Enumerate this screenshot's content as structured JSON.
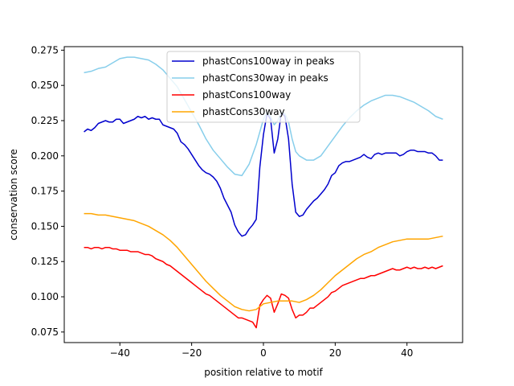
{
  "chart_data": {
    "type": "line",
    "title": "",
    "xlabel": "position relative to motif",
    "ylabel": "conservation score",
    "xlim": [
      -55.5,
      55.5
    ],
    "ylim": [
      0.0675,
      0.2775
    ],
    "xticks": [
      -40,
      -20,
      0,
      20,
      40
    ],
    "xtick_labels": [
      "−40",
      "−20",
      "0",
      "20",
      "40"
    ],
    "yticks": [
      0.075,
      0.1,
      0.125,
      0.15,
      0.175,
      0.2,
      0.225,
      0.25,
      0.275
    ],
    "ytick_labels": [
      "0.075",
      "0.100",
      "0.125",
      "0.150",
      "0.175",
      "0.200",
      "0.225",
      "0.250",
      "0.275"
    ],
    "grid": false,
    "legend_position": "top-center",
    "series": [
      {
        "name": "phastCons100way in peaks",
        "color": "#0000cd",
        "points": [
          [
            -50,
            0.217
          ],
          [
            -49,
            0.219
          ],
          [
            -48,
            0.218
          ],
          [
            -47,
            0.22
          ],
          [
            -46,
            0.223
          ],
          [
            -45,
            0.224
          ],
          [
            -44,
            0.225
          ],
          [
            -43,
            0.224
          ],
          [
            -42,
            0.224
          ],
          [
            -41,
            0.226
          ],
          [
            -40,
            0.226
          ],
          [
            -39,
            0.223
          ],
          [
            -38,
            0.224
          ],
          [
            -37,
            0.225
          ],
          [
            -36,
            0.226
          ],
          [
            -35,
            0.228
          ],
          [
            -34,
            0.227
          ],
          [
            -33,
            0.228
          ],
          [
            -32,
            0.226
          ],
          [
            -31,
            0.227
          ],
          [
            -30,
            0.226
          ],
          [
            -29,
            0.226
          ],
          [
            -28,
            0.222
          ],
          [
            -27,
            0.221
          ],
          [
            -26,
            0.22
          ],
          [
            -25,
            0.219
          ],
          [
            -24,
            0.216
          ],
          [
            -23,
            0.21
          ],
          [
            -22,
            0.208
          ],
          [
            -21,
            0.205
          ],
          [
            -20,
            0.201
          ],
          [
            -19,
            0.197
          ],
          [
            -18,
            0.193
          ],
          [
            -17,
            0.19
          ],
          [
            -16,
            0.188
          ],
          [
            -15,
            0.187
          ],
          [
            -14,
            0.185
          ],
          [
            -13,
            0.182
          ],
          [
            -12,
            0.177
          ],
          [
            -11,
            0.17
          ],
          [
            -10,
            0.165
          ],
          [
            -9,
            0.16
          ],
          [
            -8,
            0.151
          ],
          [
            -7,
            0.146
          ],
          [
            -6,
            0.143
          ],
          [
            -5,
            0.144
          ],
          [
            -4,
            0.148
          ],
          [
            -3,
            0.151
          ],
          [
            -2,
            0.155
          ],
          [
            -1,
            0.192
          ],
          [
            0,
            0.215
          ],
          [
            1,
            0.23
          ],
          [
            2,
            0.226
          ],
          [
            3,
            0.202
          ],
          [
            4,
            0.212
          ],
          [
            5,
            0.231
          ],
          [
            6,
            0.228
          ],
          [
            7,
            0.212
          ],
          [
            8,
            0.18
          ],
          [
            9,
            0.16
          ],
          [
            10,
            0.157
          ],
          [
            11,
            0.158
          ],
          [
            12,
            0.162
          ],
          [
            13,
            0.165
          ],
          [
            14,
            0.168
          ],
          [
            15,
            0.17
          ],
          [
            16,
            0.173
          ],
          [
            17,
            0.176
          ],
          [
            18,
            0.18
          ],
          [
            19,
            0.186
          ],
          [
            20,
            0.188
          ],
          [
            21,
            0.193
          ],
          [
            22,
            0.195
          ],
          [
            23,
            0.196
          ],
          [
            24,
            0.196
          ],
          [
            25,
            0.197
          ],
          [
            26,
            0.198
          ],
          [
            27,
            0.199
          ],
          [
            28,
            0.201
          ],
          [
            29,
            0.199
          ],
          [
            30,
            0.198
          ],
          [
            31,
            0.201
          ],
          [
            32,
            0.202
          ],
          [
            33,
            0.201
          ],
          [
            34,
            0.202
          ],
          [
            35,
            0.202
          ],
          [
            36,
            0.202
          ],
          [
            37,
            0.202
          ],
          [
            38,
            0.2
          ],
          [
            39,
            0.201
          ],
          [
            40,
            0.203
          ],
          [
            41,
            0.204
          ],
          [
            42,
            0.204
          ],
          [
            43,
            0.203
          ],
          [
            44,
            0.203
          ],
          [
            45,
            0.203
          ],
          [
            46,
            0.202
          ],
          [
            47,
            0.202
          ],
          [
            48,
            0.2
          ],
          [
            49,
            0.197
          ],
          [
            50,
            0.197
          ]
        ]
      },
      {
        "name": "phastCons30way in peaks",
        "color": "#87ceeb",
        "points": [
          [
            -50,
            0.259
          ],
          [
            -48,
            0.26
          ],
          [
            -46,
            0.262
          ],
          [
            -44,
            0.263
          ],
          [
            -42,
            0.266
          ],
          [
            -40,
            0.269
          ],
          [
            -38,
            0.27
          ],
          [
            -36,
            0.27
          ],
          [
            -34,
            0.269
          ],
          [
            -32,
            0.268
          ],
          [
            -30,
            0.265
          ],
          [
            -28,
            0.261
          ],
          [
            -26,
            0.255
          ],
          [
            -24,
            0.249
          ],
          [
            -22,
            0.24
          ],
          [
            -20,
            0.231
          ],
          [
            -18,
            0.222
          ],
          [
            -16,
            0.212
          ],
          [
            -14,
            0.204
          ],
          [
            -12,
            0.198
          ],
          [
            -10,
            0.192
          ],
          [
            -8,
            0.187
          ],
          [
            -6,
            0.186
          ],
          [
            -4,
            0.194
          ],
          [
            -2,
            0.208
          ],
          [
            0,
            0.226
          ],
          [
            1,
            0.231
          ],
          [
            2,
            0.228
          ],
          [
            3,
            0.222
          ],
          [
            4,
            0.225
          ],
          [
            5,
            0.231
          ],
          [
            6,
            0.23
          ],
          [
            7,
            0.224
          ],
          [
            8,
            0.212
          ],
          [
            9,
            0.203
          ],
          [
            10,
            0.2
          ],
          [
            12,
            0.197
          ],
          [
            14,
            0.197
          ],
          [
            16,
            0.2
          ],
          [
            18,
            0.207
          ],
          [
            20,
            0.214
          ],
          [
            22,
            0.221
          ],
          [
            24,
            0.227
          ],
          [
            26,
            0.232
          ],
          [
            28,
            0.236
          ],
          [
            30,
            0.239
          ],
          [
            32,
            0.241
          ],
          [
            34,
            0.243
          ],
          [
            36,
            0.243
          ],
          [
            38,
            0.242
          ],
          [
            40,
            0.24
          ],
          [
            42,
            0.238
          ],
          [
            44,
            0.235
          ],
          [
            46,
            0.232
          ],
          [
            48,
            0.228
          ],
          [
            50,
            0.226
          ]
        ]
      },
      {
        "name": "phastCons100way",
        "color": "#ff0000",
        "points": [
          [
            -50,
            0.135
          ],
          [
            -49,
            0.135
          ],
          [
            -48,
            0.134
          ],
          [
            -47,
            0.135
          ],
          [
            -46,
            0.135
          ],
          [
            -45,
            0.134
          ],
          [
            -44,
            0.135
          ],
          [
            -43,
            0.135
          ],
          [
            -42,
            0.134
          ],
          [
            -41,
            0.134
          ],
          [
            -40,
            0.133
          ],
          [
            -39,
            0.133
          ],
          [
            -38,
            0.133
          ],
          [
            -37,
            0.132
          ],
          [
            -36,
            0.132
          ],
          [
            -35,
            0.132
          ],
          [
            -34,
            0.131
          ],
          [
            -33,
            0.13
          ],
          [
            -32,
            0.13
          ],
          [
            -31,
            0.129
          ],
          [
            -30,
            0.127
          ],
          [
            -29,
            0.126
          ],
          [
            -28,
            0.125
          ],
          [
            -27,
            0.123
          ],
          [
            -26,
            0.122
          ],
          [
            -25,
            0.12
          ],
          [
            -24,
            0.118
          ],
          [
            -23,
            0.116
          ],
          [
            -22,
            0.114
          ],
          [
            -21,
            0.112
          ],
          [
            -20,
            0.11
          ],
          [
            -19,
            0.108
          ],
          [
            -18,
            0.106
          ],
          [
            -17,
            0.104
          ],
          [
            -16,
            0.102
          ],
          [
            -15,
            0.101
          ],
          [
            -14,
            0.099
          ],
          [
            -13,
            0.097
          ],
          [
            -12,
            0.095
          ],
          [
            -11,
            0.093
          ],
          [
            -10,
            0.091
          ],
          [
            -9,
            0.089
          ],
          [
            -8,
            0.087
          ],
          [
            -7,
            0.085
          ],
          [
            -6,
            0.085
          ],
          [
            -5,
            0.084
          ],
          [
            -4,
            0.083
          ],
          [
            -3,
            0.082
          ],
          [
            -2,
            0.078
          ],
          [
            -1,
            0.094
          ],
          [
            0,
            0.098
          ],
          [
            1,
            0.101
          ],
          [
            2,
            0.099
          ],
          [
            3,
            0.089
          ],
          [
            4,
            0.095
          ],
          [
            5,
            0.102
          ],
          [
            6,
            0.101
          ],
          [
            7,
            0.099
          ],
          [
            8,
            0.091
          ],
          [
            9,
            0.085
          ],
          [
            10,
            0.087
          ],
          [
            11,
            0.087
          ],
          [
            12,
            0.089
          ],
          [
            13,
            0.092
          ],
          [
            14,
            0.092
          ],
          [
            15,
            0.094
          ],
          [
            16,
            0.096
          ],
          [
            17,
            0.098
          ],
          [
            18,
            0.1
          ],
          [
            19,
            0.103
          ],
          [
            20,
            0.104
          ],
          [
            21,
            0.106
          ],
          [
            22,
            0.108
          ],
          [
            23,
            0.109
          ],
          [
            24,
            0.11
          ],
          [
            25,
            0.111
          ],
          [
            26,
            0.112
          ],
          [
            27,
            0.113
          ],
          [
            28,
            0.113
          ],
          [
            29,
            0.114
          ],
          [
            30,
            0.115
          ],
          [
            31,
            0.115
          ],
          [
            32,
            0.116
          ],
          [
            33,
            0.117
          ],
          [
            34,
            0.118
          ],
          [
            35,
            0.119
          ],
          [
            36,
            0.12
          ],
          [
            37,
            0.119
          ],
          [
            38,
            0.119
          ],
          [
            39,
            0.12
          ],
          [
            40,
            0.121
          ],
          [
            41,
            0.12
          ],
          [
            42,
            0.121
          ],
          [
            43,
            0.12
          ],
          [
            44,
            0.12
          ],
          [
            45,
            0.121
          ],
          [
            46,
            0.12
          ],
          [
            47,
            0.121
          ],
          [
            48,
            0.12
          ],
          [
            49,
            0.121
          ],
          [
            50,
            0.122
          ]
        ]
      },
      {
        "name": "phastCons30way",
        "color": "#ffa500",
        "points": [
          [
            -50,
            0.159
          ],
          [
            -48,
            0.159
          ],
          [
            -46,
            0.158
          ],
          [
            -44,
            0.158
          ],
          [
            -42,
            0.157
          ],
          [
            -40,
            0.156
          ],
          [
            -38,
            0.155
          ],
          [
            -36,
            0.154
          ],
          [
            -34,
            0.152
          ],
          [
            -32,
            0.15
          ],
          [
            -30,
            0.147
          ],
          [
            -28,
            0.144
          ],
          [
            -26,
            0.14
          ],
          [
            -24,
            0.135
          ],
          [
            -22,
            0.129
          ],
          [
            -20,
            0.123
          ],
          [
            -18,
            0.117
          ],
          [
            -16,
            0.111
          ],
          [
            -14,
            0.106
          ],
          [
            -12,
            0.101
          ],
          [
            -10,
            0.097
          ],
          [
            -8,
            0.093
          ],
          [
            -6,
            0.091
          ],
          [
            -4,
            0.09
          ],
          [
            -2,
            0.091
          ],
          [
            0,
            0.095
          ],
          [
            2,
            0.096
          ],
          [
            4,
            0.097
          ],
          [
            6,
            0.097
          ],
          [
            8,
            0.097
          ],
          [
            10,
            0.096
          ],
          [
            12,
            0.098
          ],
          [
            14,
            0.101
          ],
          [
            16,
            0.105
          ],
          [
            18,
            0.11
          ],
          [
            20,
            0.115
          ],
          [
            22,
            0.119
          ],
          [
            24,
            0.123
          ],
          [
            26,
            0.127
          ],
          [
            28,
            0.13
          ],
          [
            30,
            0.132
          ],
          [
            32,
            0.135
          ],
          [
            34,
            0.137
          ],
          [
            36,
            0.139
          ],
          [
            38,
            0.14
          ],
          [
            40,
            0.141
          ],
          [
            42,
            0.141
          ],
          [
            44,
            0.141
          ],
          [
            46,
            0.141
          ],
          [
            48,
            0.142
          ],
          [
            50,
            0.143
          ]
        ]
      }
    ]
  }
}
